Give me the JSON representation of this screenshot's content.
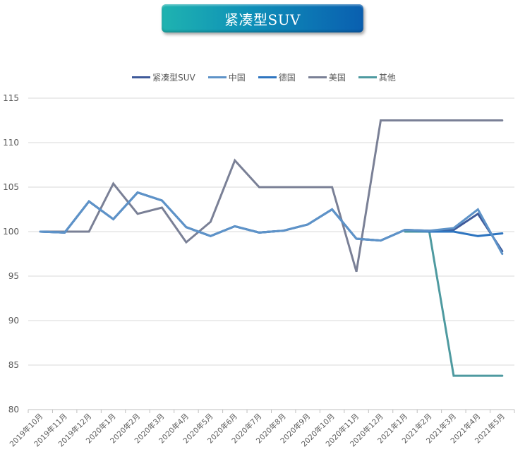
{
  "title_banner": {
    "text": "紧凑型SUV"
  },
  "legend": [
    {
      "name": "紧凑型SUV",
      "color": "#3f5a9a"
    },
    {
      "name": "中国",
      "color": "#5e93c8"
    },
    {
      "name": "德国",
      "color": "#2e75c0"
    },
    {
      "name": "美国",
      "color": "#7a8096"
    },
    {
      "name": "其他",
      "color": "#4e9aa0"
    }
  ],
  "chart_data": {
    "type": "line",
    "title": "紧凑型SUV",
    "xlabel": "",
    "ylabel": "",
    "ylim": [
      80,
      115
    ],
    "yticks": [
      80,
      85,
      90,
      95,
      100,
      105,
      110,
      115
    ],
    "grid": "horizontal",
    "legend_position": "top",
    "categories": [
      "2019年10月",
      "2019年11月",
      "2019年12月",
      "2020年1月",
      "2020年2月",
      "2020年3月",
      "2020年4月",
      "2020年5月",
      "2020年6月",
      "2020年7月",
      "2020年8月",
      "2020年9月",
      "2020年10月",
      "2020年11月",
      "2020年12月",
      "2021年1月",
      "2021年2月",
      "2021年3月",
      "2021年4月",
      "2021年5月"
    ],
    "series": [
      {
        "name": "紧凑型SUV",
        "color": "#3f5a9a",
        "values": [
          100,
          99.9,
          103.4,
          101.4,
          104.4,
          103.5,
          100.5,
          99.5,
          100.6,
          99.9,
          100.1,
          100.8,
          102.5,
          99.2,
          99.0,
          100.2,
          100.1,
          100.2,
          102.0,
          97.8
        ]
      },
      {
        "name": "中国",
        "color": "#5e93c8",
        "values": [
          100,
          99.9,
          103.4,
          101.4,
          104.4,
          103.5,
          100.5,
          99.5,
          100.6,
          99.9,
          100.1,
          100.8,
          102.5,
          99.2,
          99.0,
          100.2,
          100.1,
          100.4,
          102.5,
          97.5
        ]
      },
      {
        "name": "德国",
        "color": "#2e75c0",
        "values": [
          100,
          99.9,
          103.4,
          101.4,
          104.4,
          103.5,
          100.5,
          99.5,
          100.6,
          99.9,
          100.1,
          100.8,
          102.5,
          99.2,
          99.0,
          100.2,
          100.0,
          100.0,
          99.5,
          99.8
        ]
      },
      {
        "name": "美国",
        "color": "#7a8096",
        "values": [
          100,
          100,
          100,
          105.4,
          102.0,
          102.7,
          98.8,
          101.1,
          108.0,
          105.0,
          105.0,
          105.0,
          105.0,
          95.5,
          112.5,
          112.5,
          112.5,
          112.5,
          112.5,
          112.5
        ]
      },
      {
        "name": "其他",
        "color": "#4e9aa0",
        "values": [
          null,
          null,
          null,
          null,
          null,
          null,
          null,
          null,
          null,
          null,
          null,
          null,
          null,
          null,
          null,
          100.0,
          100.0,
          83.8,
          83.8,
          83.8
        ]
      }
    ]
  }
}
